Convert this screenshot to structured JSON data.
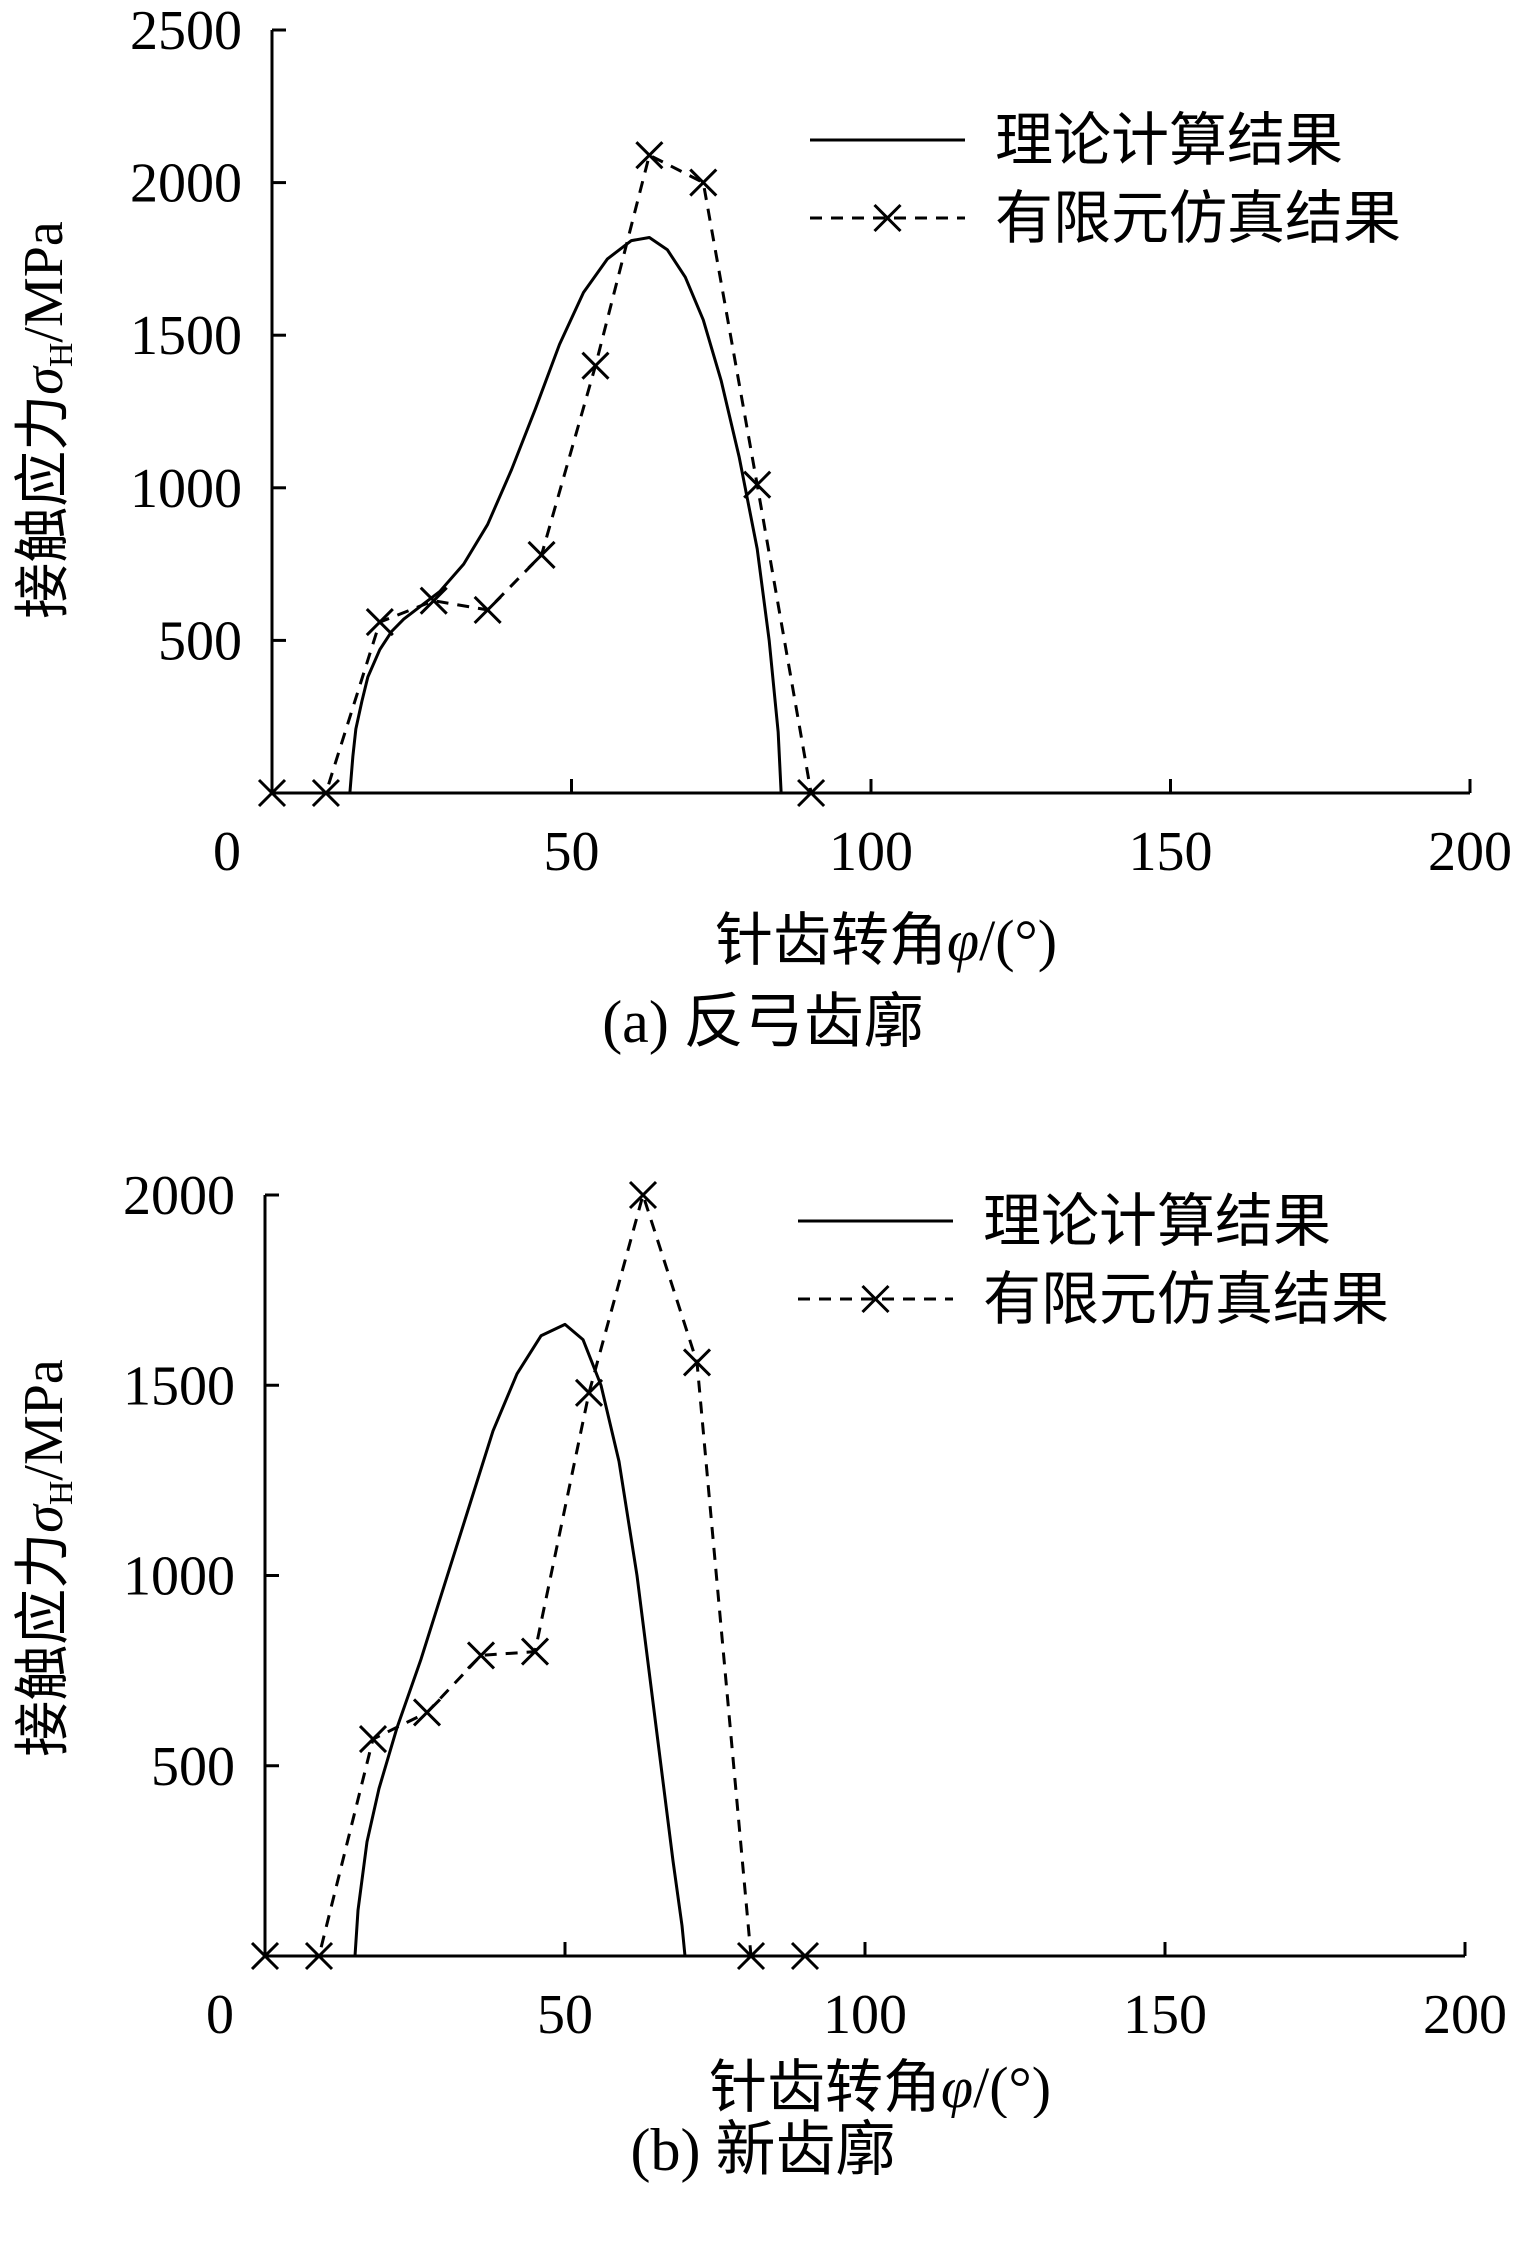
{
  "chart_data": [
    {
      "type": "line",
      "caption": "(a)  反弓齿廓",
      "xlabel_prefix": "针齿转角",
      "xlabel_var": "φ",
      "xlabel_unit": "/(°)",
      "ylabel_prefix": "接触应力",
      "ylabel_var": "σ",
      "ylabel_sub": "H",
      "ylabel_unit": "/MPa",
      "xlim": [
        0,
        200
      ],
      "ylim": [
        0,
        2500
      ],
      "xticks": [
        0,
        50,
        100,
        150,
        200
      ],
      "yticks": [
        500,
        1000,
        1500,
        2000,
        2500
      ],
      "legend_position": "top-right",
      "series": [
        {
          "name": "理论计算结果",
          "style": "solid",
          "x": [
            13,
            13.5,
            14,
            15,
            16,
            18,
            20,
            22,
            25,
            28,
            32,
            36,
            40,
            44,
            48,
            52,
            56,
            60,
            63,
            66,
            69,
            72,
            75,
            78,
            81,
            83,
            84.5,
            85
          ],
          "y": [
            0,
            120,
            210,
            300,
            380,
            470,
            530,
            570,
            615,
            660,
            750,
            880,
            1060,
            1260,
            1470,
            1640,
            1750,
            1810,
            1820,
            1780,
            1690,
            1550,
            1350,
            1100,
            800,
            500,
            200,
            0
          ]
        },
        {
          "name": "有限元仿真结果",
          "style": "dashed",
          "marker": "x",
          "x": [
            0,
            9,
            18,
            27,
            36,
            45,
            54,
            63,
            72,
            81,
            90
          ],
          "y": [
            0,
            0,
            560,
            630,
            600,
            780,
            1400,
            2090,
            2000,
            1010,
            0
          ]
        }
      ]
    },
    {
      "type": "line",
      "caption": "(b)  新齿廓",
      "xlabel_prefix": "针齿转角",
      "xlabel_var": "φ",
      "xlabel_unit": "/(°)",
      "ylabel_prefix": "接触应力",
      "ylabel_var": "σ",
      "ylabel_sub": "H",
      "ylabel_unit": "/MPa",
      "xlim": [
        0,
        200
      ],
      "ylim": [
        0,
        2000
      ],
      "xticks": [
        0,
        50,
        100,
        150,
        200
      ],
      "yticks": [
        500,
        1000,
        1500,
        2000
      ],
      "legend_position": "top-right",
      "series": [
        {
          "name": "理论计算结果",
          "style": "solid",
          "x": [
            15,
            15.5,
            17,
            19,
            22,
            26,
            30,
            34,
            38,
            42,
            46,
            50,
            53,
            56,
            59,
            62,
            64,
            66,
            68,
            69.5,
            70
          ],
          "y": [
            0,
            120,
            300,
            440,
            600,
            780,
            980,
            1180,
            1380,
            1530,
            1630,
            1660,
            1620,
            1500,
            1300,
            1000,
            750,
            500,
            250,
            80,
            0
          ]
        },
        {
          "name": "有限元仿真结果",
          "style": "dashed",
          "marker": "x",
          "x": [
            0,
            9,
            18,
            27,
            36,
            45,
            54,
            63,
            72,
            81,
            90
          ],
          "y": [
            0,
            0,
            570,
            640,
            790,
            800,
            1480,
            2000,
            1560,
            0,
            0
          ]
        }
      ]
    }
  ]
}
